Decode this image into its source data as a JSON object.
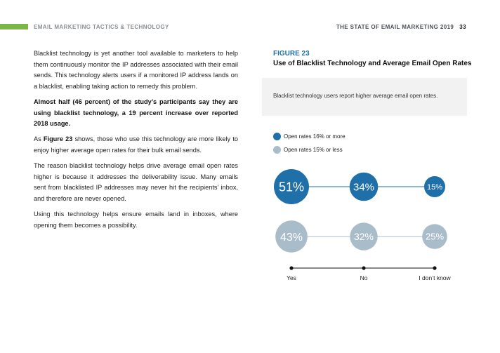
{
  "header": {
    "left": "EMAIL MARKETING TACTICS & TECHNOLOGY",
    "right": "THE STATE OF EMAIL MARKETING 2019",
    "page": "33",
    "accent_color": "#7ab648"
  },
  "body": {
    "p1": "Blacklist technology is yet another tool available to marketers to help them continuously monitor the IP addresses associated with their email sends. This technology alerts users if a monitored IP address lands on a blacklist, enabling taking action to remedy this problem.",
    "p2": "Almost half (46 percent) of the study’s participants say they are using blacklist technology, a 19 percent increase over reported 2018 usage.",
    "p3_pre": "As ",
    "p3_bold": "Figure 23",
    "p3_post": " shows, those who use this technology are more likely to enjoy higher average open rates for their bulk email sends.",
    "p4": "The reason blacklist technology helps drive average email open rates higher is because it addresses the deliverability issue. Many emails sent from blacklisted IP addresses may never hit the recipients’ inbox, and therefore are never opened.",
    "p5": "Using this technology helps ensure emails land in inboxes, where opening them becomes a possibility."
  },
  "figure": {
    "label": "FIGURE 23",
    "title": "Use of Blacklist Technology and Average Email Open Rates",
    "caption": "Blacklist technology users report higher average email open rates."
  },
  "chart_data": {
    "type": "bubble",
    "categories": [
      "Yes",
      "No",
      "I don’t know"
    ],
    "series": [
      {
        "name": "Open rates 16% or more",
        "values": [
          51,
          34,
          15
        ],
        "labels": [
          "51%",
          "34%",
          "15%"
        ],
        "color": "#1f6fa8"
      },
      {
        "name": "Open rates 15% or less",
        "values": [
          43,
          32,
          25
        ],
        "labels": [
          "43%",
          "32%",
          "25%"
        ],
        "color": "#a9bcc9"
      }
    ],
    "legend_position": "top-left"
  }
}
